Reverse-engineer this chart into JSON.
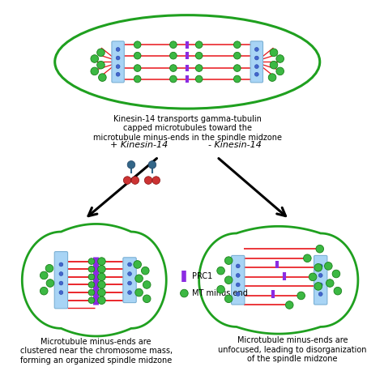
{
  "bg_color": "#ffffff",
  "cell_outline_color": "#1fa01f",
  "spindle_pole_color": "#a8d4f5",
  "spindle_pole_edge": "#7ab0d4",
  "mt_color": "#e8151a",
  "prc1_color": "#8b2be2",
  "green_dot_color": "#3cb843",
  "green_dot_edge": "#1a801a",
  "blue_dot_color": "#4466cc",
  "blue_dot_edge": "#2244aa",
  "kinesin_color": "#cc2222",
  "kinesin_head_color": "#336688",
  "top_caption": "Kinesin-14 transports gamma-tubulin\ncapped microtubules toward the\nmicrotubule minus-ends in the spindle midzone",
  "left_label": "+ Kinesin-14",
  "right_label": "- Kinesin-14",
  "left_caption": "Microtubule minus-ends are\nclustered near the chromosome mass,\nforming an organized spindle midzone",
  "right_caption": "Microtubule minus-ends are\nunfocused, leading to disorganization\nof the spindle midzone",
  "legend_prc1": "PRC1",
  "legend_mt": "MT minus end",
  "text_fontsize": 7.0,
  "label_fontsize": 8.0
}
